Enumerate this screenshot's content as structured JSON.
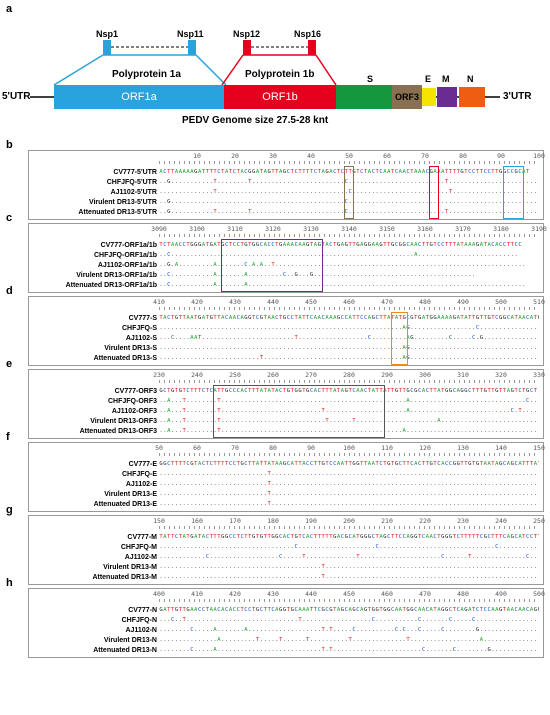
{
  "panel_a": {
    "letter": "a",
    "nsp_labels": [
      "Nsp1",
      "Nsp11",
      "Nsp12",
      "Nsp16"
    ],
    "polyprotein_1a": "Polyprotein 1a",
    "polyprotein_1b": "Polyprotein 1b",
    "utr5": "5'UTR",
    "utr3": "3'UTR",
    "segments": [
      {
        "label": "ORF1a",
        "color": "#29a3dc"
      },
      {
        "label": "ORF1b",
        "color": "#e5001e"
      },
      {
        "label": "S",
        "color": "#13973f"
      },
      {
        "label": "ORF3",
        "color": "#8a7052"
      },
      {
        "label": "E",
        "color": "#f4e400"
      },
      {
        "label": "M",
        "color": "#6a2c91"
      },
      {
        "label": "N",
        "color": "#ee5d12"
      }
    ],
    "genome_size": "PEDV Genome size 27.5-28 knt"
  },
  "alignments": [
    {
      "letter": "b",
      "ticks": [
        "10",
        "20",
        "30",
        "40",
        "50",
        "60",
        "70",
        "80",
        "90",
        "100"
      ],
      "rows": [
        {
          "name": "CV777-5'UTR",
          "seq": "ACTTAAAAAGATTTTCTATCTACGGATAGTTAGCTCTTTTCTAGACTCTTGTCTACTCAATCAACTAAACGAAATTTTGTCCTTCCTTGGCCGCAT"
        },
        {
          "name": "CHFJFQ-5'UTR",
          "seq": "..G...........T........T........................C.........................T........................"
        },
        {
          "name": "AJ1102-5'UTR",
          "seq": "..............T..................................C.........................T........................"
        },
        {
          "name": "Virulent DR13-5'UTR",
          "seq": "..G.............................................C..................................................."
        },
        {
          "name": "Attenuated DR13-5'UTR",
          "seq": "..G...........T........T........................C.........................T........................"
        }
      ],
      "highlights": [
        {
          "color": "#8a7052"
        },
        {
          "color": "#e5001e"
        },
        {
          "color": "#29a3dc"
        }
      ]
    },
    {
      "letter": "c",
      "ticks": [
        "3090",
        "3100",
        "3110",
        "3120",
        "3130",
        "3140",
        "3150",
        "3160",
        "3170",
        "3180",
        "3190"
      ],
      "rows": [
        {
          "name": "CV777-ORF1a/1b",
          "seq": "TCTAACCTGGGATGATGCTCCTGTGGCACCTGAAACAAGTAGTACTGAGTTGAGGAAGTTGCGGCAACTTGTCCTTTATAAAGATACACCTTCC"
        },
        {
          "name": "CHFJFQ-ORF1a/1b",
          "seq": "..C...............................................................A.........................."
        },
        {
          "name": "AJ1102-ORF1a/1b",
          "seq": "..G.A.........A.......C.A.A..T................................................................."
        },
        {
          "name": "Virulent DR13-ORF1a/1b",
          "seq": "..C...........A.......A.........C..G...G.........................................."
        },
        {
          "name": "Attenuated DR13-ORF1a/1b",
          "seq": "..C...........A.......A........................................................................"
        }
      ],
      "highlights": [
        {
          "color": "#6a2c91"
        }
      ]
    },
    {
      "letter": "d",
      "ticks": [
        "410",
        "420",
        "430",
        "440",
        "450",
        "460",
        "470",
        "480",
        "490",
        "500",
        "510"
      ],
      "rows": [
        {
          "name": "CV777-S",
          "seq": "TACTGTTAATGATGTTACAACAGGTCGTAACTGCCTATTCAACAAAGCCATTCCAGCTTATATGCGTGATGGAAAAGATATTGTTGTCGGCATAACATGG"
        },
        {
          "name": "CHFJFQ-S",
          "seq": "...............................................................AG.................C................."
        },
        {
          "name": "AJ1102-S",
          "seq": "...C....AAT........................T..................C.........AG.........C.....C.G..............."
        },
        {
          "name": "Virulent DR13-S",
          "seq": "...............................................................AG..................................."
        },
        {
          "name": "Attenuated DR13-S",
          "seq": "..........................T....................................AG..................................."
        }
      ],
      "highlights": [
        {
          "color": "#ee8a12"
        }
      ]
    },
    {
      "letter": "e",
      "ticks": [
        "230",
        "240",
        "250",
        "260",
        "270",
        "280",
        "290",
        "300",
        "310",
        "320",
        "330"
      ],
      "rows": [
        {
          "name": "CV777-ORF3",
          "seq": "GCTGTGTCTTTCTCATTGCCCACTTTATATACTGTGGTGCACTTTATAGTCAACTATTATTGTTGCGCACTTATGGCAGGCTTTGTTGTTAGTCTGCT"
        },
        {
          "name": "CHFJFQ-ORF3",
          "seq": "..A...T........T................................................A..............................C...."
        },
        {
          "name": "AJ1102-ORF3",
          "seq": "..A...T........T..........................T.....................A..........................C.T......"
        },
        {
          "name": "Virulent DR13-ORF3",
          "seq": "..A...T........T...........................T......T.....................A............................"
        },
        {
          "name": "Attenuated DR13-ORF3",
          "seq": "..A...T........T...............................................A...................................."
        }
      ],
      "highlights": [
        {
          "color": "#555555"
        }
      ]
    },
    {
      "letter": "f",
      "ticks": [
        "50",
        "60",
        "70",
        "80",
        "90",
        "100",
        "110",
        "120",
        "130",
        "140",
        "150"
      ],
      "rows": [
        {
          "name": "CV777-E",
          "seq": "GGCTTTTCGTACTCTTTTCCTGCTTATTATAAGCATTACCTTGTCCAATTGGTTAATCTGTGCTTCACTTGTCACCGGTTGTGTAATAGCAGCATTTATA"
        },
        {
          "name": "CHFJFQ-E",
          "seq": "............................T.......................................................................C."
        },
        {
          "name": "AJ1102-E",
          "seq": "............................T.......................................................................C."
        },
        {
          "name": "Virulent DR13-E",
          "seq": "............................T.......................................................................C."
        },
        {
          "name": "Attenuated DR13-E",
          "seq": "............................T.......................................................................C."
        }
      ],
      "highlights": [
        {
          "color": "#c2185b"
        }
      ]
    },
    {
      "letter": "g",
      "ticks": [
        "150",
        "160",
        "170",
        "180",
        "190",
        "200",
        "210",
        "220",
        "230",
        "240",
        "250"
      ],
      "rows": [
        {
          "name": "CV777-M",
          "seq": "TATTCTATGATACTTTGGCCTCTTGTGTTGGCACTGTCACTTTTTGACGCATGGGCTAGCTTCCAGGTCAACTGGGTCTTTTTCGCTTTCAGCATCCTTAT"
        },
        {
          "name": "CHFJFQ-M",
          "seq": "...................................C....................C..............................C..........."
        },
        {
          "name": "AJ1102-M",
          "seq": "............C..................C.....T.............T.....................C......T..............C....."
        },
        {
          "name": "Virulent DR13-M",
          "seq": "..........................................T........................................................"
        },
        {
          "name": "Attenuated DR13-M",
          "seq": "..........................................T........................................................"
        }
      ],
      "highlights": []
    },
    {
      "letter": "h",
      "ticks": [
        "400",
        "410",
        "420",
        "430",
        "440",
        "450",
        "460",
        "470",
        "480",
        "490",
        "500"
      ],
      "rows": [
        {
          "name": "CV777-N",
          "seq": "GATTGTTGAACCTAACACACCTCCTGCTTCAGGTGCAAATTCGCGTAGCAGCAGTGGTGGCAATGGCAACATAGGCTCAGATCTCCAAGTAACAACAGGC"
        },
        {
          "name": "CHFJFQ-N",
          "seq": "...C..T.............................T..................C...........C.......C.....C.................."
        },
        {
          "name": "AJ1102-N",
          "seq": "........C.....A.......A...................T.T.....C..........C.C...C.....C........G..............."
        },
        {
          "name": "Virulent DR13-N",
          "seq": "...............A.........T.....T......T..........T..............T..................A................"
        },
        {
          "name": "Attenuated DR13-N",
          "seq": "........C.....A...........................T.T.......................C.......C........G..............."
        }
      ],
      "highlights": []
    }
  ]
}
